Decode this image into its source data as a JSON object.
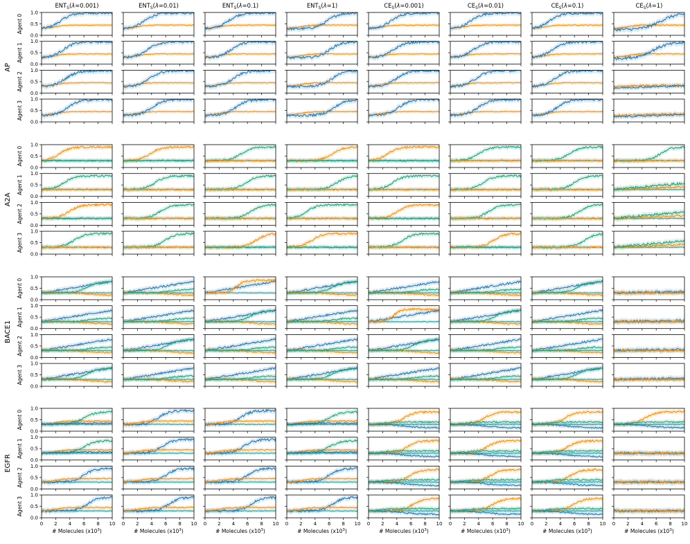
{
  "chart_data": {
    "type": "line",
    "columns": [
      {
        "base": "ENT",
        "sub": "S",
        "lambda": "0.001"
      },
      {
        "base": "ENT",
        "sub": "S",
        "lambda": "0.01"
      },
      {
        "base": "ENT",
        "sub": "S",
        "lambda": "0.1"
      },
      {
        "base": "ENT",
        "sub": "S",
        "lambda": "1"
      },
      {
        "base": "CE",
        "sub": "S",
        "lambda": "0.001"
      },
      {
        "base": "CE",
        "sub": "S",
        "lambda": "0.01"
      },
      {
        "base": "CE",
        "sub": "S",
        "lambda": "0.1"
      },
      {
        "base": "CE",
        "sub": "S",
        "lambda": "1"
      }
    ],
    "groups": [
      "AP",
      "A2A",
      "BACE1",
      "EGFR"
    ],
    "agents": [
      "Agent 0",
      "Agent 1",
      "Agent 2",
      "Agent 3"
    ],
    "xlabel": "# Molecules (x10",
    "xlabel_sup": "3",
    "xlabel_close": ")",
    "xticks": [
      "0",
      "2",
      "4",
      "6",
      "8",
      "10"
    ],
    "yticks": [
      "0.0",
      "0.5",
      "1.0"
    ],
    "xlim": [
      0,
      10
    ],
    "ylim": [
      0,
      1
    ],
    "colors": {
      "blue": "#1f77b4",
      "orange": "#ff8c00",
      "green": "#1aa37a",
      "teal": "#2a9d9f"
    },
    "series_shapes": {
      "AP": {
        "blue": "sigmoid rising from ~0.3 to ~1.0",
        "orange": "flat rising to ~0.45"
      },
      "A2A_BACE1_EGFR": {
        "blue": "varies",
        "orange": "varies",
        "green": "varies",
        "teal": "flat ~0.3"
      }
    },
    "approx_series": [
      {
        "group": "AP",
        "color": "blue",
        "x": [
          0,
          2,
          4,
          6,
          8,
          10
        ],
        "y": [
          0.3,
          0.45,
          0.8,
          0.95,
          0.98,
          1.0
        ]
      },
      {
        "group": "AP",
        "color": "orange",
        "x": [
          0,
          2,
          4,
          6,
          8,
          10
        ],
        "y": [
          0.3,
          0.42,
          0.45,
          0.45,
          0.45,
          0.45
        ]
      }
    ]
  }
}
